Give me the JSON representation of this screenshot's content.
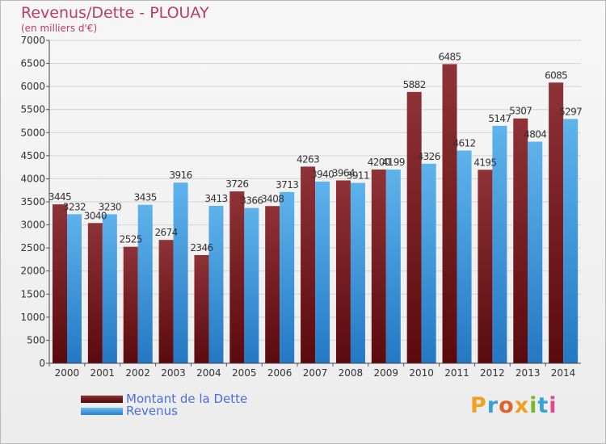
{
  "title": "Revenus/Dette - PLOUAY",
  "subtitle": "(en milliers d'€)",
  "logo_text": "Proxiti",
  "colors": {
    "title": "#c0396b",
    "dette": "#6b1416",
    "revenus": "#2e8fd8",
    "legend_text": "#4b6ee6",
    "grid": "#d4d4d4"
  },
  "chart_data": {
    "type": "bar",
    "categories": [
      "2000",
      "2001",
      "2002",
      "2003",
      "2004",
      "2005",
      "2006",
      "2007",
      "2008",
      "2009",
      "2010",
      "2011",
      "2012",
      "2013",
      "2014"
    ],
    "series": [
      {
        "name": "Montant de la Dette",
        "values": [
          3445,
          3040,
          2525,
          2674,
          2346,
          3726,
          3408,
          4263,
          3964,
          4200,
          5882,
          6485,
          4195,
          5307,
          6085
        ],
        "labels": [
          "3445",
          "3040",
          "2525",
          "2674",
          "2346",
          "3726",
          "3408",
          "4263",
          "3964",
          "4200",
          "5882",
          "6485",
          "4195",
          "5307",
          "6085"
        ]
      },
      {
        "name": "Revenus",
        "values": [
          3232,
          3230,
          3435,
          3916,
          3413,
          3366,
          3713,
          3940,
          3911,
          4199,
          4326,
          4612,
          5147,
          4804,
          5297
        ],
        "labels": [
          "3232",
          "3230",
          "3435",
          "3916",
          "3413",
          "3366",
          "3713",
          "3940",
          "3911",
          "4199",
          "4326",
          "4612",
          "5147",
          "4804",
          "5297"
        ]
      }
    ],
    "ylim": [
      0,
      7000
    ],
    "yticks": [
      0,
      500,
      1000,
      1500,
      2000,
      2500,
      3000,
      3500,
      4000,
      4500,
      5000,
      5500,
      6000,
      6500,
      7000
    ],
    "grid": true,
    "legend_position": "bottom-left"
  }
}
